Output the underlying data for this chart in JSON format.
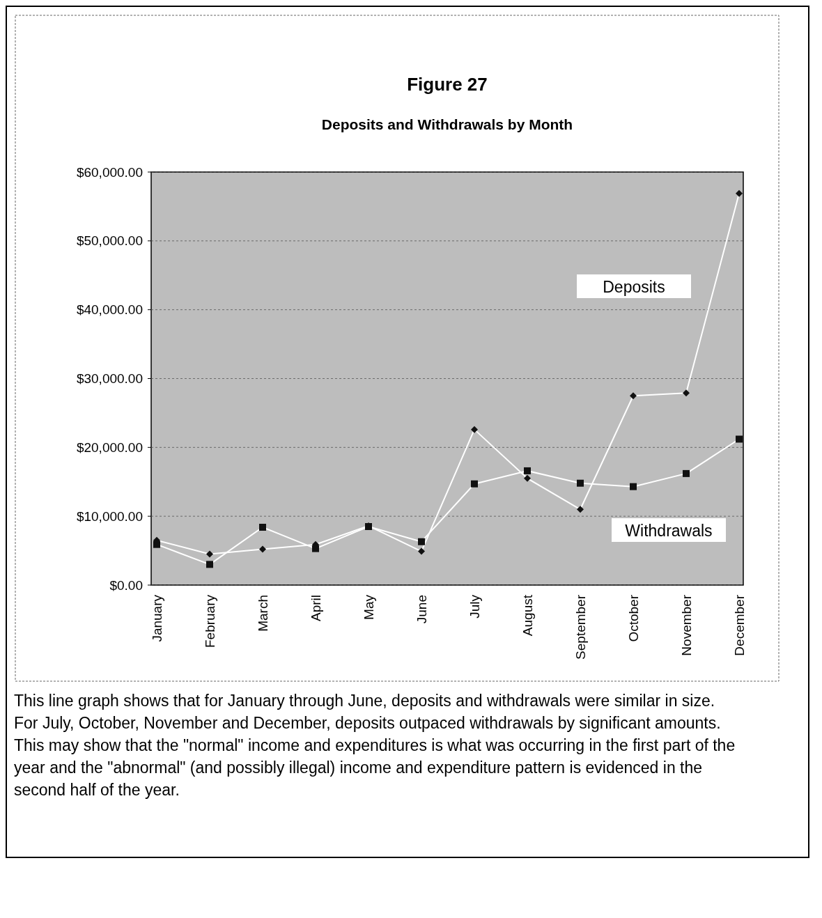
{
  "chart_data": {
    "type": "line",
    "title": "Figure 27",
    "subtitle": "Deposits and Withdrawals by Month",
    "categories": [
      "January",
      "February",
      "March",
      "April",
      "May",
      "June",
      "July",
      "August",
      "September",
      "October",
      "November",
      "December"
    ],
    "series": [
      {
        "name": "Deposits",
        "color": "#ffffff",
        "marker": "diamond",
        "values": [
          6500,
          4500,
          5200,
          5900,
          8600,
          4900,
          22600,
          15500,
          11000,
          27500,
          27900,
          56900
        ]
      },
      {
        "name": "Withdrawals",
        "color": "#ffffff",
        "marker": "square",
        "values": [
          5900,
          3000,
          8400,
          5300,
          8500,
          6300,
          14700,
          16600,
          14800,
          14300,
          16200,
          21200
        ]
      }
    ],
    "ylim": [
      0,
      60000
    ],
    "yticks": [
      {
        "value": 0,
        "label": "$0.00"
      },
      {
        "value": 10000,
        "label": "$10,000.00"
      },
      {
        "value": 20000,
        "label": "$20,000.00"
      },
      {
        "value": 30000,
        "label": "$30,000.00"
      },
      {
        "value": 40000,
        "label": "$40,000.00"
      },
      {
        "value": 50000,
        "label": "$50,000.00"
      },
      {
        "value": 60000,
        "label": "$60,000.00"
      }
    ],
    "grid": "y",
    "legend": false,
    "annotations": [
      "This line graph shows that for January through June, deposits and withdrawals were similar in size.  For July, October, November and December, deposits outpaced withdrawals by significant amounts.  This may show that the \"normal\" income and expenditures is what was occurring in the first part of the year and the \"abnormal\" (and possibly illegal) income and expenditure pattern is evidenced in the second half of the year."
    ]
  }
}
